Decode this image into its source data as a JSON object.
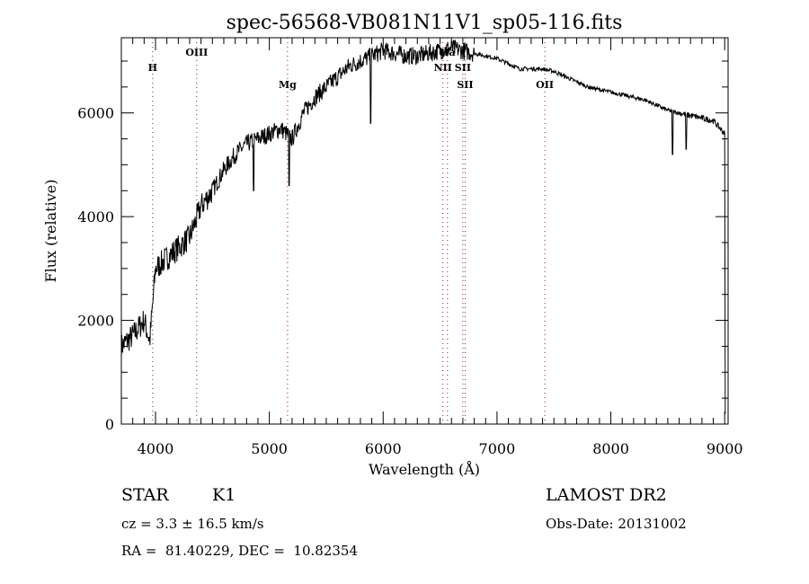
{
  "chart_data": {
    "type": "line",
    "title": "spec-56568-VB081N11V1_sp05-116.fits",
    "xlabel": "Wavelength (Å)",
    "ylabel": "Flux (relative)",
    "xlim": [
      3700,
      9030
    ],
    "ylim": [
      0,
      7450
    ],
    "xticks": [
      4000,
      5000,
      6000,
      7000,
      8000,
      9000
    ],
    "yticks": [
      0,
      2000,
      4000,
      6000
    ],
    "grid": false,
    "series": [
      {
        "name": "spectrum",
        "x": [
          3700,
          3800,
          3900,
          3950,
          4000,
          4100,
          4200,
          4300,
          4400,
          4500,
          4600,
          4700,
          4800,
          4900,
          5000,
          5100,
          5200,
          5300,
          5400,
          5500,
          5600,
          5700,
          5800,
          5900,
          6000,
          6100,
          6200,
          6300,
          6400,
          6500,
          6600,
          6700,
          6800,
          6900,
          7000,
          7100,
          7200,
          7300,
          7400,
          7500,
          7600,
          7700,
          7800,
          7900,
          8000,
          8100,
          8200,
          8300,
          8400,
          8500,
          8600,
          8700,
          8800,
          8900,
          9000
        ],
        "y": [
          1500,
          1700,
          2000,
          1600,
          3000,
          3200,
          3400,
          3600,
          4200,
          4500,
          4900,
          5200,
          5400,
          5500,
          5600,
          5700,
          5500,
          6000,
          6300,
          6500,
          6700,
          6900,
          7000,
          7100,
          7200,
          7150,
          7100,
          7100,
          7150,
          7200,
          7250,
          7200,
          7150,
          7100,
          7050,
          6950,
          6850,
          6850,
          6850,
          6800,
          6700,
          6600,
          6500,
          6450,
          6400,
          6350,
          6300,
          6250,
          6150,
          6050,
          6000,
          5950,
          5900,
          5850,
          5600
        ]
      }
    ],
    "absorption_features": [
      {
        "x": 5890,
        "y": 5800
      },
      {
        "x": 4861,
        "y": 4500
      },
      {
        "x": 5175,
        "y": 4600
      },
      {
        "x": 8542,
        "y": 5200
      },
      {
        "x": 8662,
        "y": 5300
      }
    ],
    "line_markers": [
      {
        "label": "H",
        "x": 3975,
        "row": 1
      },
      {
        "label": "OIII",
        "x": 4362,
        "row": 0
      },
      {
        "label": "Mg",
        "x": 5160,
        "row": 2
      },
      {
        "label": "NII",
        "x": 6525,
        "row": 1
      },
      {
        "label": "Ha",
        "x": 6565,
        "row": 0
      },
      {
        "label": "SII",
        "x": 6700,
        "row": 1
      },
      {
        "label": "SII",
        "x": 6720,
        "row": 2
      },
      {
        "label": "OII",
        "x": 7420,
        "row": 2
      }
    ],
    "colors": {
      "line": "#000000",
      "marker": "#8b1a1a"
    }
  },
  "info": {
    "object_class": "STAR",
    "subclass": "K1",
    "cz": "cz = 3.3 ± 16.5 km/s",
    "coords": "RA =  81.40229, DEC =  10.82354",
    "survey": "LAMOST DR2",
    "obs_date": "Obs-Date: 20131002"
  }
}
